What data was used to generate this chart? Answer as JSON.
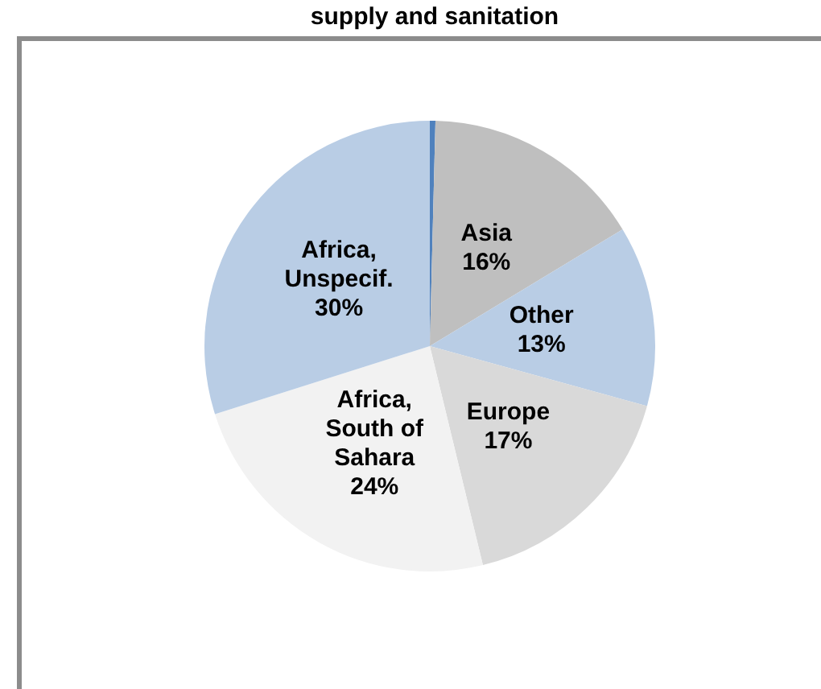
{
  "chart_data": {
    "type": "pie",
    "title": "supply and sanitation",
    "categories": [
      null,
      "Asia",
      "Other",
      "Europe",
      "Africa, South of Sahara",
      "Africa, Unspecif."
    ],
    "values": [
      0.4,
      16,
      13,
      17,
      24,
      30
    ],
    "value_labels": [
      null,
      "16%",
      "13%",
      "17%",
      "24%",
      "30%"
    ],
    "colors": [
      "#4f81bd",
      "#bfbfbf",
      "#b9cde5",
      "#d9d9d9",
      "#f2f2f2",
      "#b9cde5"
    ],
    "legend": false
  }
}
